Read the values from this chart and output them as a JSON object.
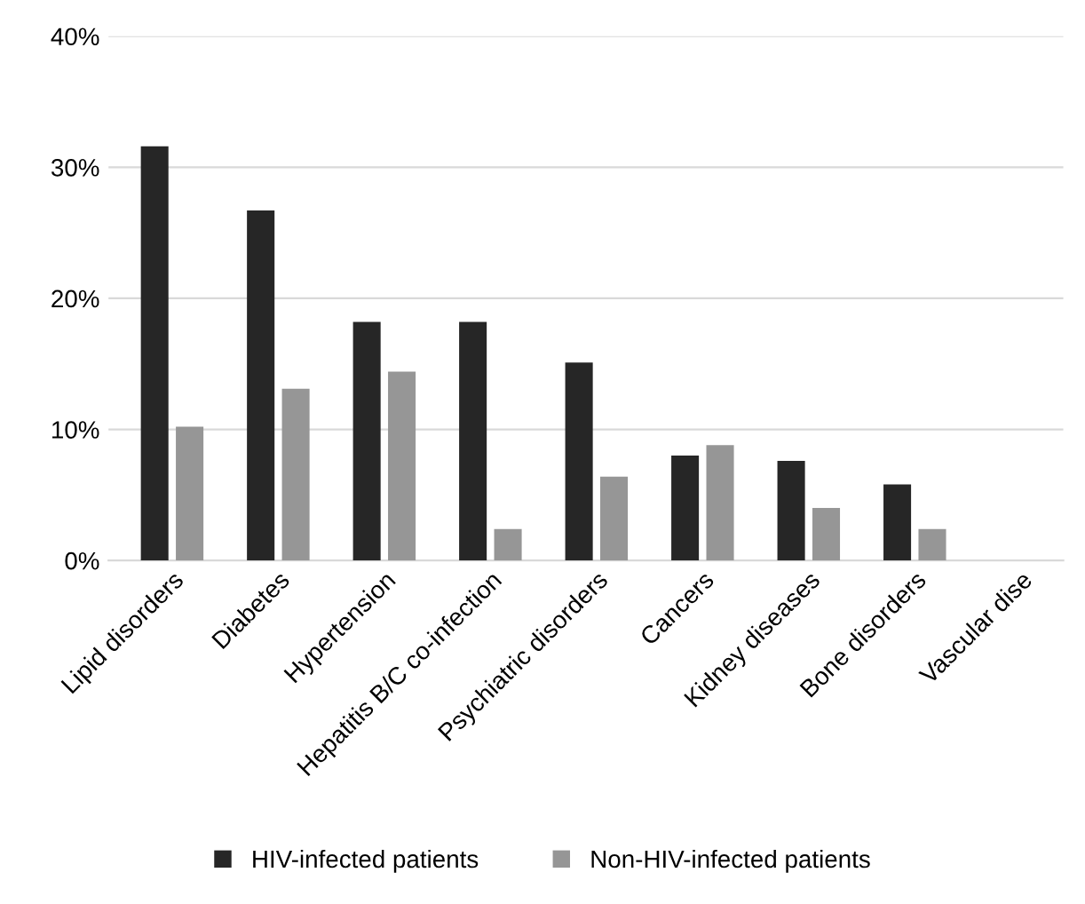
{
  "chart_data": {
    "type": "bar",
    "categories": [
      "Lipid disorders",
      "Diabetes",
      "Hypertension",
      "Hepatitis B/C co-infection",
      "Psychiatric disorders",
      "Cancers",
      "Kidney diseases",
      "Bone disorders",
      "Vascular dise"
    ],
    "series": [
      {
        "name": "HIV-infected patients",
        "color": "#262626",
        "values": [
          31.6,
          26.7,
          18.2,
          18.2,
          15.1,
          8.0,
          7.6,
          5.8,
          null
        ]
      },
      {
        "name": "Non-HIV-infected patients",
        "color": "#969696",
        "values": [
          10.2,
          13.1,
          14.4,
          2.4,
          6.4,
          8.8,
          4.0,
          2.4,
          null
        ]
      }
    ],
    "ylim": [
      0,
      40
    ],
    "yticks": [
      {
        "value": 0,
        "label": "0%"
      },
      {
        "value": 10,
        "label": "10%"
      },
      {
        "value": 20,
        "label": "20%"
      },
      {
        "value": 30,
        "label": "30%"
      },
      {
        "value": 40,
        "label": "40%"
      }
    ],
    "grid": "y",
    "legend": "bottom"
  }
}
